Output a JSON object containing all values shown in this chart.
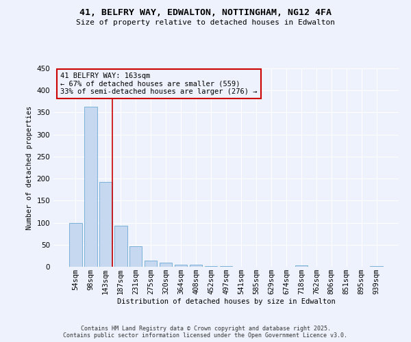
{
  "title": "41, BELFRY WAY, EDWALTON, NOTTINGHAM, NG12 4FA",
  "subtitle": "Size of property relative to detached houses in Edwalton",
  "xlabel": "Distribution of detached houses by size in Edwalton",
  "ylabel": "Number of detached properties",
  "categories": [
    "54sqm",
    "98sqm",
    "143sqm",
    "187sqm",
    "231sqm",
    "275sqm",
    "320sqm",
    "364sqm",
    "408sqm",
    "452sqm",
    "497sqm",
    "541sqm",
    "585sqm",
    "629sqm",
    "674sqm",
    "718sqm",
    "762sqm",
    "806sqm",
    "851sqm",
    "895sqm",
    "939sqm"
  ],
  "values": [
    99,
    363,
    193,
    93,
    46,
    14,
    9,
    4,
    5,
    2,
    1,
    0,
    0,
    0,
    0,
    3,
    0,
    0,
    0,
    0,
    1
  ],
  "bar_color": "#c5d8f0",
  "bar_edge_color": "#7ab0d8",
  "vline_x_index": 2,
  "vline_color": "#cc0000",
  "annotation_text": "41 BELFRY WAY: 163sqm\n← 67% of detached houses are smaller (559)\n33% of semi-detached houses are larger (276) →",
  "annotation_box_color": "#cc0000",
  "ylim": [
    0,
    450
  ],
  "background_color": "#eef2fc",
  "grid_color": "#ffffff",
  "footer_line1": "Contains HM Land Registry data © Crown copyright and database right 2025.",
  "footer_line2": "Contains public sector information licensed under the Open Government Licence v3.0."
}
